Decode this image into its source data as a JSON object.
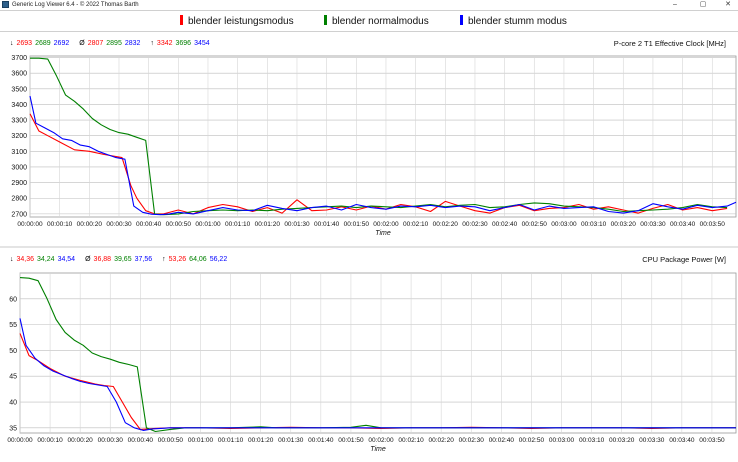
{
  "window": {
    "title": "Generic Log Viewer 6.4 - © 2022 Thomas Barth",
    "minimize_glyph": "–",
    "maximize_glyph": "▢",
    "close_glyph": "✕"
  },
  "colors": {
    "red": "#ff0000",
    "green": "#008000",
    "blue": "#0000ff"
  },
  "legend": [
    {
      "label": "blender leistungsmodus",
      "color": "#ff0000"
    },
    {
      "label": "blender normalmodus",
      "color": "#008000"
    },
    {
      "label": "blender stumm modus",
      "color": "#0000ff"
    }
  ],
  "panels": {
    "clock": {
      "title": "P-core 2 T1 Effective Clock [MHz]",
      "stats": {
        "min_symbol": "↓",
        "min": [
          "2693",
          "2689",
          "2692"
        ],
        "avg_symbol": "Ø",
        "avg": [
          "2807",
          "2895",
          "2832"
        ],
        "max_symbol": "↑",
        "max": [
          "3342",
          "3696",
          "3454"
        ]
      }
    },
    "power": {
      "title": "CPU Package Power [W]",
      "stats": {
        "min_symbol": "↓",
        "min": [
          "34,36",
          "34,24",
          "34,54"
        ],
        "avg_symbol": "Ø",
        "avg": [
          "36,88",
          "39,65",
          "37,56"
        ],
        "max_symbol": "↑",
        "max": [
          "53,26",
          "64,06",
          "56,22"
        ]
      }
    }
  },
  "chart_data": [
    {
      "type": "line",
      "title": "P-core 2 T1 Effective Clock [MHz]",
      "xlabel": "Time",
      "ylabel": "",
      "x_ticks": [
        "00:00:00",
        "00:00:10",
        "00:00:20",
        "00:00:30",
        "00:00:40",
        "00:00:50",
        "00:01:00",
        "00:01:10",
        "00:01:20",
        "00:01:30",
        "00:01:40",
        "00:01:50",
        "00:02:00",
        "00:02:10",
        "00:02:20",
        "00:02:30",
        "00:02:40",
        "00:02:50",
        "00:03:00",
        "00:03:10",
        "00:03:20",
        "00:03:30",
        "00:03:40",
        "00:03:50"
      ],
      "y_ticks": [
        2700,
        2800,
        2900,
        3000,
        3100,
        3200,
        3300,
        3400,
        3500,
        3600,
        3700
      ],
      "xlim": [
        0,
        238
      ],
      "ylim": [
        2680,
        3710
      ],
      "grid": true,
      "series": [
        {
          "name": "blender leistungsmodus",
          "color": "#ff0000",
          "x": [
            0,
            3,
            6,
            10,
            15,
            20,
            25,
            28,
            31,
            34,
            36,
            39,
            42,
            45,
            50,
            55,
            60,
            65,
            70,
            75,
            80,
            85,
            90,
            95,
            100,
            105,
            110,
            115,
            120,
            125,
            130,
            135,
            140,
            145,
            150,
            155,
            160,
            165,
            170,
            175,
            180,
            185,
            190,
            195,
            200,
            205,
            210,
            215,
            220,
            225,
            230,
            235
          ],
          "y": [
            3340,
            3230,
            3200,
            3160,
            3110,
            3100,
            3080,
            3070,
            3060,
            2880,
            2800,
            2720,
            2700,
            2700,
            2725,
            2700,
            2740,
            2760,
            2745,
            2715,
            2740,
            2705,
            2790,
            2720,
            2725,
            2745,
            2725,
            2750,
            2730,
            2760,
            2745,
            2715,
            2780,
            2750,
            2720,
            2705,
            2740,
            2755,
            2720,
            2735,
            2740,
            2760,
            2730,
            2745,
            2725,
            2705,
            2735,
            2760,
            2725,
            2740,
            2720,
            2735
          ]
        },
        {
          "name": "blender normalmodus",
          "color": "#008000",
          "x": [
            0,
            3,
            6,
            9,
            12,
            15,
            18,
            21,
            24,
            27,
            30,
            33,
            36,
            39,
            42,
            45,
            50,
            55,
            60,
            65,
            70,
            75,
            80,
            85,
            90,
            95,
            100,
            105,
            110,
            115,
            120,
            125,
            130,
            135,
            140,
            145,
            150,
            155,
            160,
            165,
            170,
            175,
            180,
            185,
            190,
            195,
            200,
            205,
            210,
            215,
            220,
            225,
            230,
            235
          ],
          "y": [
            3696,
            3696,
            3690,
            3580,
            3460,
            3420,
            3370,
            3310,
            3270,
            3240,
            3220,
            3210,
            3190,
            3170,
            2700,
            2695,
            2700,
            2715,
            2720,
            2725,
            2720,
            2725,
            2720,
            2730,
            2735,
            2740,
            2745,
            2750,
            2740,
            2750,
            2745,
            2740,
            2750,
            2760,
            2745,
            2755,
            2760,
            2740,
            2745,
            2760,
            2770,
            2765,
            2750,
            2745,
            2740,
            2730,
            2715,
            2720,
            2725,
            2730,
            2740,
            2760,
            2745,
            2740
          ]
        },
        {
          "name": "blender stumm modus",
          "color": "#0000ff",
          "x": [
            0,
            2,
            5,
            8,
            11,
            14,
            17,
            20,
            23,
            26,
            29,
            32,
            35,
            38,
            41,
            44,
            47,
            50,
            55,
            60,
            65,
            70,
            75,
            80,
            85,
            90,
            95,
            100,
            105,
            110,
            115,
            120,
            125,
            130,
            135,
            140,
            145,
            150,
            155,
            160,
            165,
            170,
            175,
            180,
            185,
            190,
            195,
            200,
            205,
            210,
            215,
            220,
            225,
            230,
            235,
            238
          ],
          "y": [
            3454,
            3280,
            3250,
            3220,
            3180,
            3170,
            3140,
            3130,
            3100,
            3080,
            3060,
            3050,
            2750,
            2710,
            2698,
            2695,
            2700,
            2710,
            2700,
            2720,
            2740,
            2725,
            2720,
            2755,
            2735,
            2720,
            2740,
            2750,
            2725,
            2760,
            2740,
            2730,
            2750,
            2745,
            2755,
            2740,
            2750,
            2745,
            2720,
            2740,
            2760,
            2725,
            2750,
            2735,
            2740,
            2745,
            2715,
            2705,
            2720,
            2765,
            2745,
            2730,
            2755,
            2740,
            2750,
            2775
          ]
        }
      ]
    },
    {
      "type": "line",
      "title": "CPU Package Power [W]",
      "xlabel": "Time",
      "ylabel": "",
      "x_ticks": [
        "00:00:00",
        "00:00:10",
        "00:00:20",
        "00:00:30",
        "00:00:40",
        "00:00:50",
        "00:01:00",
        "00:01:10",
        "00:01:20",
        "00:01:30",
        "00:01:40",
        "00:01:50",
        "00:02:00",
        "00:02:10",
        "00:02:20",
        "00:02:30",
        "00:02:40",
        "00:02:50",
        "00:03:00",
        "00:03:10",
        "00:03:20",
        "00:03:30",
        "00:03:40",
        "00:03:50"
      ],
      "y_ticks": [
        35,
        40,
        45,
        50,
        55,
        60
      ],
      "xlim": [
        0,
        238
      ],
      "ylim": [
        34,
        65
      ],
      "grid": true,
      "series": [
        {
          "name": "blender leistungsmodus",
          "color": "#ff0000",
          "x": [
            0,
            3,
            6,
            10,
            15,
            20,
            25,
            28,
            31,
            34,
            37,
            40,
            45,
            50,
            60,
            70,
            80,
            90,
            100,
            110,
            120,
            130,
            140,
            150,
            160,
            170,
            180,
            190,
            200,
            210,
            220,
            230,
            238
          ],
          "y": [
            53.3,
            49.0,
            48.0,
            46.5,
            45.0,
            44.2,
            43.5,
            43.2,
            43.0,
            40.0,
            37.0,
            34.7,
            34.9,
            35.0,
            35.0,
            34.9,
            35.0,
            35.1,
            35.0,
            35.0,
            34.9,
            35.0,
            35.0,
            35.1,
            35.0,
            34.9,
            35.0,
            35.0,
            35.0,
            34.9,
            35.0,
            35.0,
            35.0
          ]
        },
        {
          "name": "blender normalmodus",
          "color": "#008000",
          "x": [
            0,
            3,
            6,
            9,
            12,
            15,
            18,
            21,
            24,
            27,
            30,
            33,
            36,
            39,
            42,
            45,
            50,
            55,
            60,
            70,
            80,
            85,
            90,
            100,
            110,
            115,
            120,
            130,
            140,
            150,
            160,
            170,
            180,
            190,
            200,
            210,
            220,
            230,
            238
          ],
          "y": [
            64.1,
            64.0,
            63.5,
            60.0,
            56.0,
            53.5,
            52.0,
            51.0,
            49.5,
            48.8,
            48.3,
            47.7,
            47.3,
            46.8,
            35.0,
            34.3,
            34.7,
            35.0,
            35.0,
            35.0,
            35.2,
            35.0,
            35.0,
            35.0,
            35.1,
            35.5,
            35.0,
            35.0,
            35.0,
            35.0,
            35.0,
            35.0,
            35.0,
            35.0,
            35.0,
            35.0,
            35.0,
            35.0,
            35.0
          ]
        },
        {
          "name": "blender stumm modus",
          "color": "#0000ff",
          "x": [
            0,
            2,
            5,
            8,
            11,
            14,
            17,
            20,
            23,
            26,
            29,
            32,
            35,
            38,
            41,
            44,
            50,
            60,
            70,
            80,
            90,
            100,
            110,
            120,
            130,
            140,
            150,
            160,
            170,
            180,
            190,
            200,
            210,
            220,
            230,
            238
          ],
          "y": [
            56.2,
            51.0,
            48.5,
            47.0,
            46.0,
            45.3,
            44.6,
            44.0,
            43.6,
            43.3,
            43.0,
            40.0,
            36.0,
            35.0,
            34.5,
            34.8,
            35.0,
            35.0,
            35.0,
            35.0,
            35.0,
            35.0,
            35.0,
            35.0,
            35.0,
            35.0,
            35.0,
            35.0,
            35.0,
            35.0,
            35.0,
            35.0,
            35.0,
            35.0,
            35.0,
            35.0
          ]
        }
      ]
    }
  ]
}
